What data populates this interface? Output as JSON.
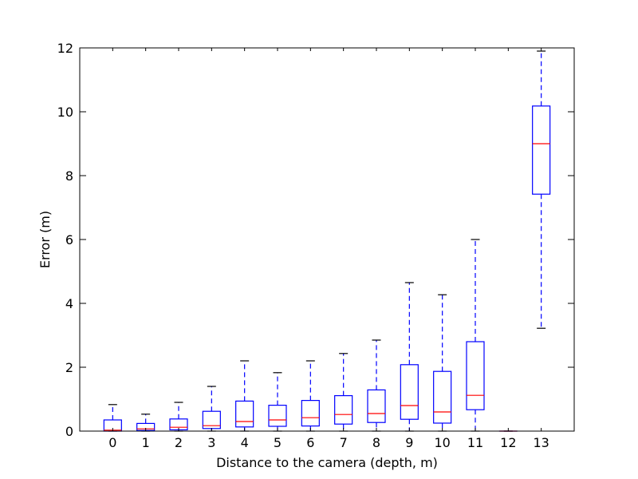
{
  "chart_data": {
    "type": "box",
    "xlabel": "Distance to the camera (depth, m)",
    "ylabel": "Error (m)",
    "ylim": [
      0,
      12
    ],
    "yticks": [
      0,
      2,
      4,
      6,
      8,
      10,
      12
    ],
    "grid": false,
    "colors": {
      "box": "#0000ff",
      "median": "#ff0000",
      "cap": "#000000"
    },
    "boxes": [
      {
        "label": "0",
        "whisker_low": 0,
        "q1": 0.0,
        "median": 0.03,
        "q3": 0.35,
        "whisker_high": 0.83
      },
      {
        "label": "1",
        "whisker_low": 0,
        "q1": 0.02,
        "median": 0.07,
        "q3": 0.24,
        "whisker_high": 0.53
      },
      {
        "label": "2",
        "whisker_low": 0,
        "q1": 0.04,
        "median": 0.12,
        "q3": 0.38,
        "whisker_high": 0.9
      },
      {
        "label": "3",
        "whisker_low": 0,
        "q1": 0.08,
        "median": 0.17,
        "q3": 0.62,
        "whisker_high": 1.4
      },
      {
        "label": "4",
        "whisker_low": 0,
        "q1": 0.13,
        "median": 0.3,
        "q3": 0.94,
        "whisker_high": 2.2
      },
      {
        "label": "5",
        "whisker_low": 0,
        "q1": 0.15,
        "median": 0.35,
        "q3": 0.81,
        "whisker_high": 1.83
      },
      {
        "label": "6",
        "whisker_low": 0,
        "q1": 0.16,
        "median": 0.42,
        "q3": 0.96,
        "whisker_high": 2.2
      },
      {
        "label": "7",
        "whisker_low": 0,
        "q1": 0.22,
        "median": 0.52,
        "q3": 1.11,
        "whisker_high": 2.43
      },
      {
        "label": "8",
        "whisker_low": 0,
        "q1": 0.27,
        "median": 0.55,
        "q3": 1.29,
        "whisker_high": 2.85
      },
      {
        "label": "9",
        "whisker_low": 0,
        "q1": 0.37,
        "median": 0.8,
        "q3": 2.08,
        "whisker_high": 4.65
      },
      {
        "label": "10",
        "whisker_low": 0,
        "q1": 0.25,
        "median": 0.6,
        "q3": 1.87,
        "whisker_high": 4.27
      },
      {
        "label": "11",
        "whisker_low": 0,
        "q1": 0.67,
        "median": 1.12,
        "q3": 2.8,
        "whisker_high": 6.0
      },
      {
        "label": "12",
        "whisker_low": 0,
        "q1": 0.0,
        "median": 0.0,
        "q3": 0.0,
        "whisker_high": 0.0
      },
      {
        "label": "13",
        "whisker_low": 3.22,
        "q1": 7.42,
        "median": 9.0,
        "q3": 10.18,
        "whisker_high": 11.9
      }
    ]
  }
}
